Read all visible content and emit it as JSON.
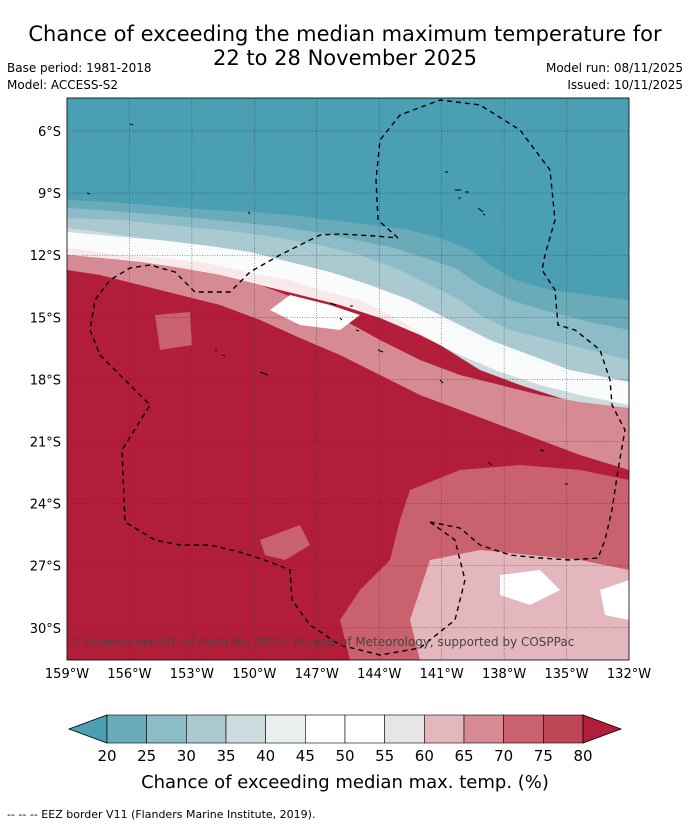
{
  "title_line1": "Chance of exceeding the median maximum temperature for",
  "title_line2": "22 to 28 November 2025",
  "base_period": "Base period: 1981-2018",
  "model": "Model: ACCESS-S2",
  "model_run": "Model run: 08/11/2025",
  "issued": "Issued: 10/11/2025",
  "latitude_ticks": [
    "6°S",
    "9°S",
    "12°S",
    "15°S",
    "18°S",
    "21°S",
    "24°S",
    "27°S",
    "30°S"
  ],
  "longitude_ticks": [
    "159°W",
    "156°W",
    "153°W",
    "150°W",
    "147°W",
    "144°W",
    "141°W",
    "138°W",
    "135°W",
    "132°W"
  ],
  "copyright": "© Commonwealth of Australia 2025, Bureau of Meteorology, supported by COSPPac",
  "colorbar": {
    "title": "Chance of exceeding median max. temp. (%)",
    "labels": [
      "20",
      "25",
      "30",
      "35",
      "40",
      "45",
      "50",
      "55",
      "60",
      "65",
      "70",
      "75",
      "80"
    ],
    "colors": [
      "#4a9fb2",
      "#6aabba",
      "#8cbcc7",
      "#aac9d0",
      "#cddbdf",
      "#eaeff0",
      "#ffffff",
      "#ffffff",
      "#e6e6e6",
      "#e3b7bd",
      "#d68a93",
      "#c9626e",
      "#bf4654",
      "#b21e3a"
    ]
  },
  "legend_note": "--  --  -- EEZ border V11 (Flanders Marine Institute, 2019)."
}
